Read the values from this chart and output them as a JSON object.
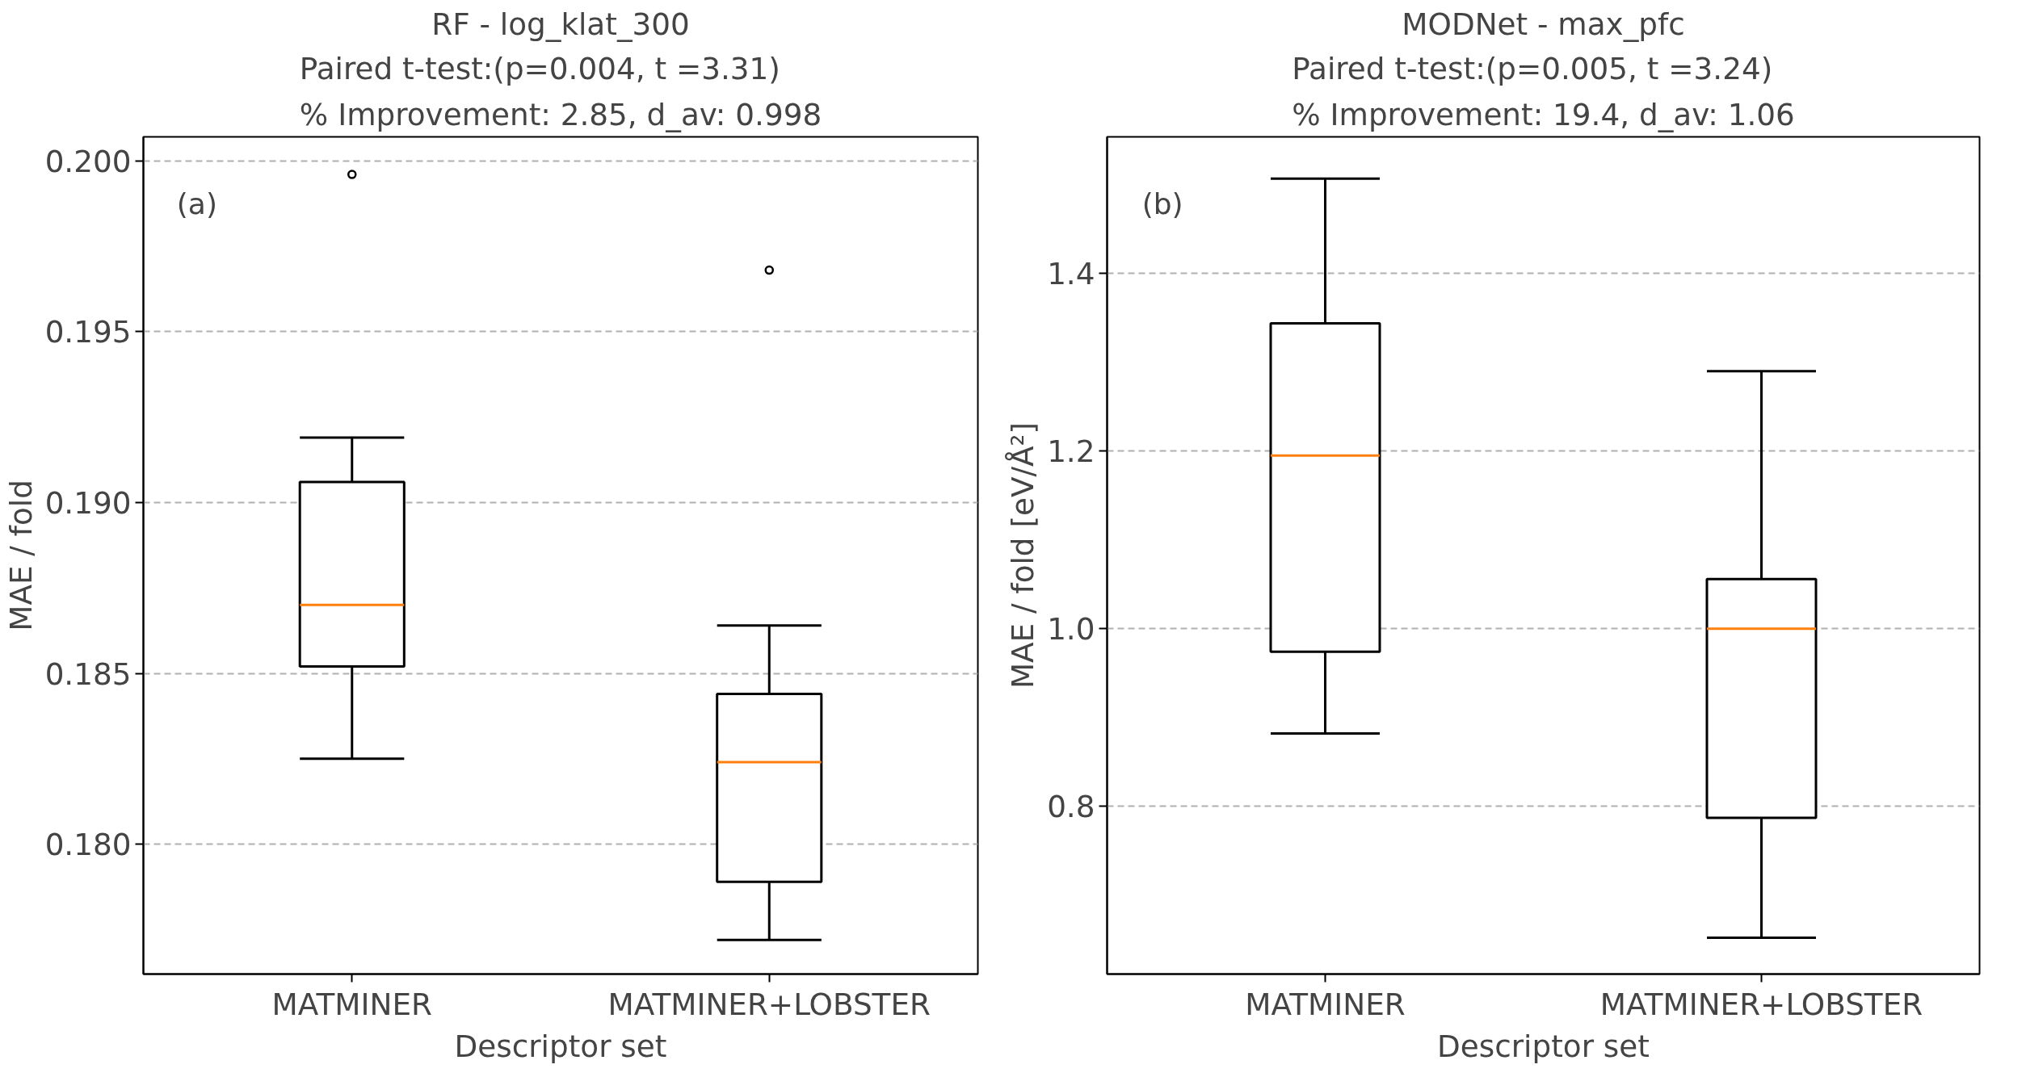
{
  "chart_data": [
    {
      "type": "box",
      "title": "RF - log_klat_300",
      "subtitle": "Paired t-test:(p=0.004, t =3.31)\n% Improvement: 2.85, d_av: 0.998",
      "xlabel": "Descriptor set",
      "ylabel": "MAE / fold",
      "annotations": [
        "(a)"
      ],
      "categories": [
        "MATMINER",
        "MATMINER+LOBSTER"
      ],
      "boxes": [
        {
          "low": 0.1825,
          "q1": 0.1852,
          "median": 0.187,
          "q3": 0.1906,
          "high": 0.1919,
          "outliers": [
            0.1996
          ]
        },
        {
          "low": 0.1772,
          "q1": 0.1789,
          "median": 0.1824,
          "q3": 0.1844,
          "high": 0.1864,
          "outliers": [
            0.1968
          ]
        }
      ],
      "ylim": [
        0.1762,
        0.2007
      ],
      "yticks": [
        {
          "value": 0.18,
          "label": "0.180"
        },
        {
          "value": 0.185,
          "label": "0.185"
        },
        {
          "value": 0.19,
          "label": "0.190"
        },
        {
          "value": 0.195,
          "label": "0.195"
        },
        {
          "value": 0.2,
          "label": "0.200"
        }
      ],
      "grid": "y"
    },
    {
      "type": "box",
      "title": "MODNet - max_pfc",
      "subtitle": "Paired t-test:(p=0.005, t =3.24)\n% Improvement: 19.4, d_av: 1.06",
      "xlabel": "Descriptor set",
      "ylabel": "MAE / fold [eV/Å²]",
      "annotations": [
        "(b)"
      ],
      "categories": [
        "MATMINER",
        "MATMINER+LOBSTER"
      ],
      "boxes": [
        {
          "low": 0.882,
          "q1": 0.974,
          "median": 1.195,
          "q3": 1.344,
          "high": 1.507
        },
        {
          "low": 0.652,
          "q1": 0.787,
          "median": 1.0,
          "q3": 1.056,
          "high": 1.29
        }
      ],
      "ylim": [
        0.611,
        1.554
      ],
      "yticks": [
        {
          "value": 0.8,
          "label": "0.8"
        },
        {
          "value": 1.0,
          "label": "1.0"
        },
        {
          "value": 1.2,
          "label": "1.2"
        },
        {
          "value": 1.4,
          "label": "1.4"
        }
      ],
      "grid": "y"
    }
  ]
}
